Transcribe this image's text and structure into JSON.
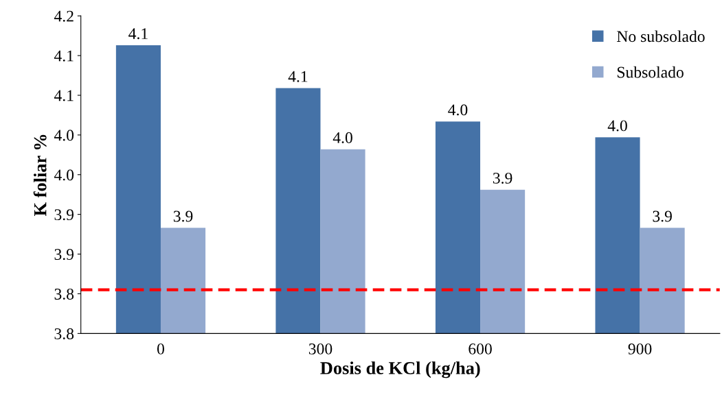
{
  "chart_data": {
    "type": "bar",
    "xlabel": "Dosis de KCl (kg/ha)",
    "ylabel": "K foliar %",
    "categories": [
      "0",
      "300",
      "600",
      "900"
    ],
    "series": [
      {
        "name": "No subsolado",
        "color": "#4572a7",
        "values": [
          4.113,
          4.059,
          4.017,
          3.997
        ],
        "value_labels": [
          "4.1",
          "4.1",
          "4.0",
          "4.0"
        ]
      },
      {
        "name": "Subsolado",
        "color": "#93a9cf",
        "values": [
          3.883,
          3.982,
          3.931,
          3.883
        ],
        "value_labels": [
          "3.9",
          "4.0",
          "3.9",
          "3.9"
        ]
      }
    ],
    "ylim": [
      3.75,
      4.15
    ],
    "yticks": [
      {
        "value": 3.75,
        "label": "3.8"
      },
      {
        "value": 3.8,
        "label": "3.8"
      },
      {
        "value": 3.85,
        "label": "3.9"
      },
      {
        "value": 3.9,
        "label": "3.9"
      },
      {
        "value": 3.95,
        "label": "4.0"
      },
      {
        "value": 4.0,
        "label": "4.0"
      },
      {
        "value": 4.05,
        "label": "4.1"
      },
      {
        "value": 4.1,
        "label": "4.1"
      },
      {
        "value": 4.15,
        "label": "4.2"
      }
    ],
    "ref_lines": [
      {
        "axis": "y",
        "value": 3.805,
        "color": "#ff0000",
        "line_style": "dashed"
      }
    ],
    "legend": "top right",
    "grid": false
  }
}
